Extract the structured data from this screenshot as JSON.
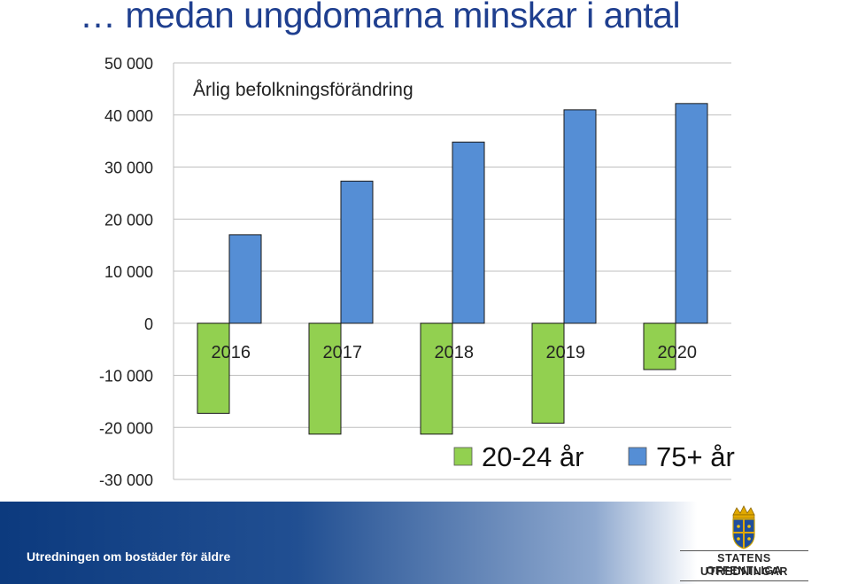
{
  "slide": {
    "title": "… medan ungdomarna minskar i antal",
    "footer_text": "Utredningen om bostäder för äldre",
    "logo_line1": "STATENS OFFENTLIGA",
    "logo_line2": "UTREDNINGAR"
  },
  "chart_data": {
    "type": "bar",
    "title": "Årlig befolkningsförändring",
    "categories": [
      "2016",
      "2017",
      "2018",
      "2019",
      "2020"
    ],
    "series": [
      {
        "name": "20-24 år",
        "color": "#92d050",
        "values": [
          -17300,
          -21300,
          -21300,
          -19200,
          -8900
        ]
      },
      {
        "name": "75+ år",
        "color": "#558ed5",
        "values": [
          17000,
          27300,
          34800,
          41000,
          42200
        ]
      }
    ],
    "ylim": [
      -30000,
      50000
    ],
    "yticks": [
      "50 000",
      "40 000",
      "30 000",
      "20 000",
      "10 000",
      "0",
      "-10 000",
      "-20 000",
      "-30 000"
    ],
    "grid": true,
    "legend": "bottom-right"
  }
}
